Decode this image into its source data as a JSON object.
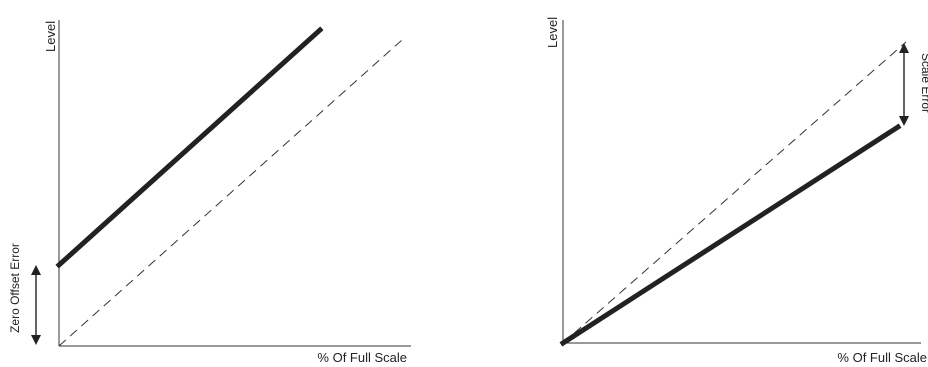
{
  "colors": {
    "axis": "#333333",
    "actual_line": "#222222",
    "ideal_line": "#333333",
    "text": "#222222"
  },
  "left_diagram": {
    "y_axis_label": "Level",
    "x_axis_label": "% Of Full Scale",
    "error_label": "Zero Offset Error",
    "error_indicator": "double-arrow-icon"
  },
  "right_diagram": {
    "y_axis_label": "Level",
    "x_axis_label": "% Of Full Scale",
    "error_label": "Scale Error",
    "error_indicator": "double-arrow-icon"
  }
}
